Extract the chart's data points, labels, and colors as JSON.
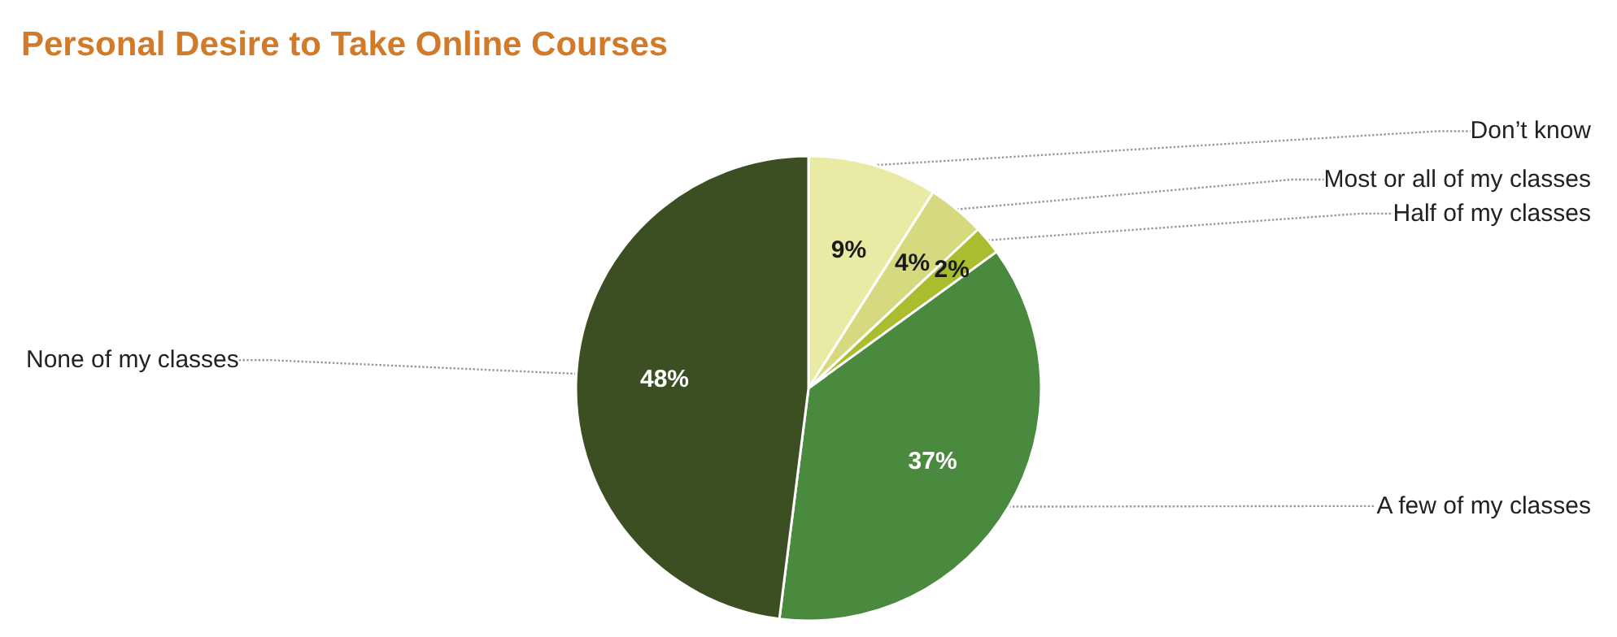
{
  "chart_data": {
    "type": "pie",
    "title": "Personal Desire to Take Online Courses",
    "categories": [
      "Don’t know",
      "Most or all of my classes",
      "Half of my classes",
      "A few of my classes",
      "None of my classes"
    ],
    "values": [
      9,
      4,
      2,
      37,
      48
    ],
    "colors": [
      "#e9eba4",
      "#d6d97f",
      "#a9bd2e",
      "#4a8a3f",
      "#3c4f23"
    ],
    "value_labels": [
      "9%",
      "4%",
      "2%",
      "37%",
      "48%"
    ]
  }
}
